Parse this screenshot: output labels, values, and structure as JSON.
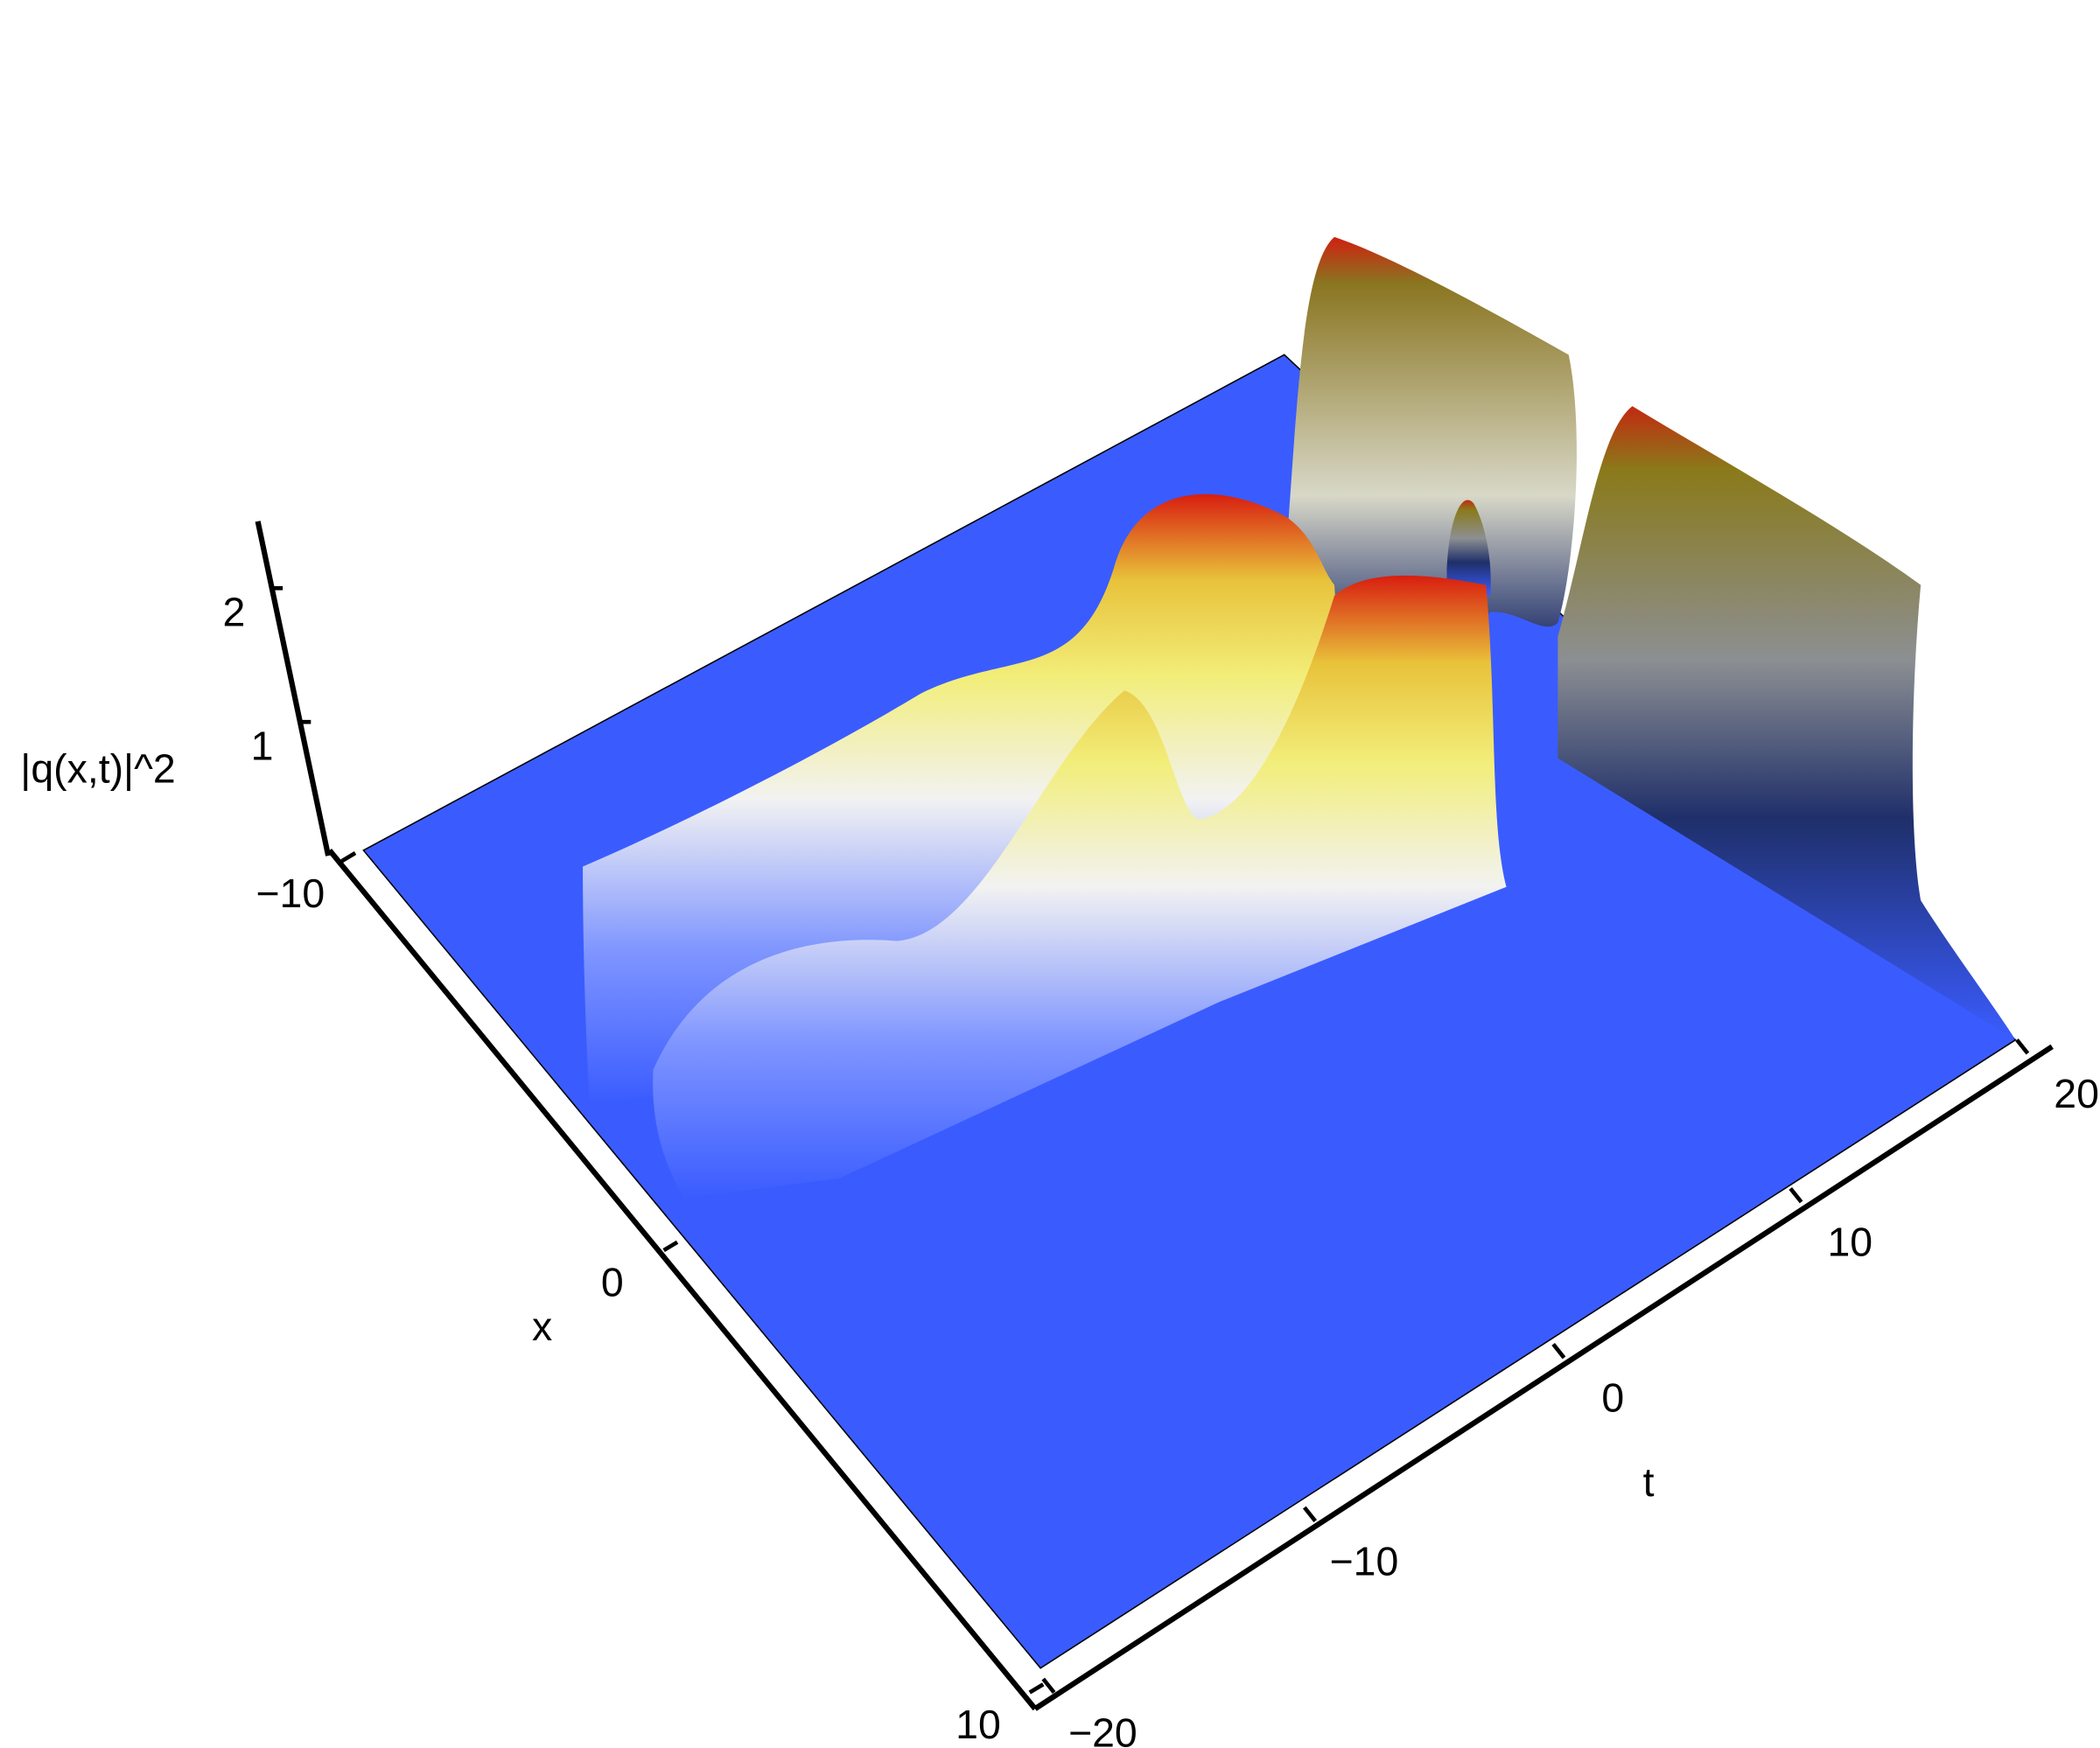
{
  "chart_data": {
    "type": "surface",
    "x_label": "x",
    "y_label": "t",
    "z_label": "|q(x,t)|^2",
    "xlim": [
      -10,
      10
    ],
    "xticks": [
      {
        "value": -10,
        "label": "−10"
      },
      0,
      10
    ],
    "ylim": [
      -20,
      20
    ],
    "yticks": [
      {
        "value": -20,
        "label": "−20"
      },
      {
        "value": -10,
        "label": "−10"
      },
      0,
      10,
      20
    ],
    "zlim": [
      0,
      2.5
    ],
    "zticks": [
      1,
      2
    ],
    "floor_color": "#3a5cff"
  }
}
